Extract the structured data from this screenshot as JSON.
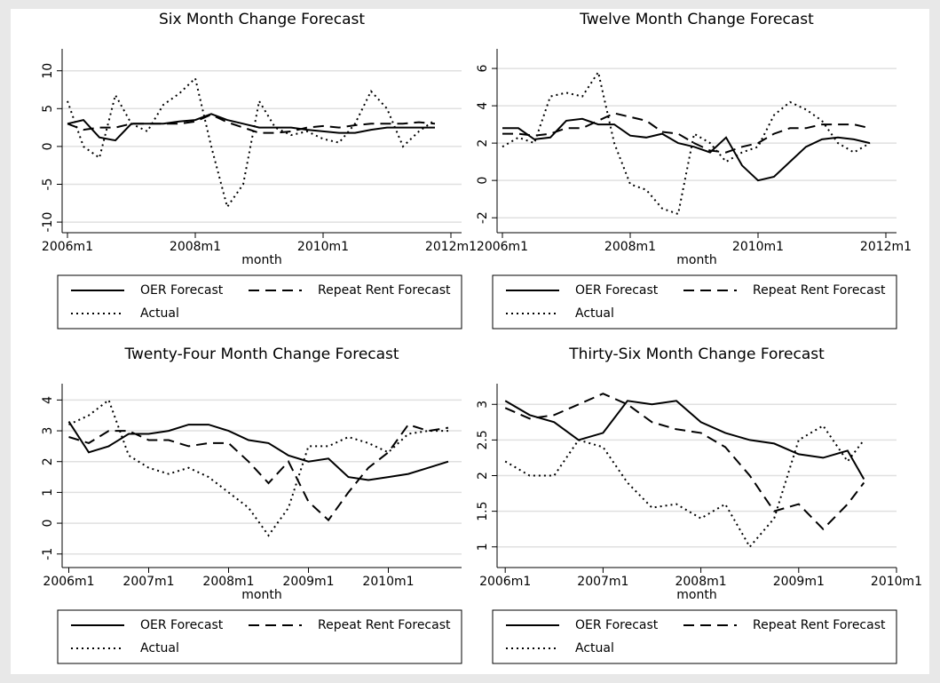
{
  "chart_data": [
    {
      "type": "line",
      "title": "Six Month Change Forecast",
      "x_label": "month",
      "x": [
        "2006m1",
        "2006m4",
        "2006m7",
        "2006m10",
        "2007m1",
        "2007m4",
        "2007m7",
        "2007m10",
        "2008m1",
        "2008m4",
        "2008m7",
        "2008m10",
        "2009m1",
        "2009m4",
        "2009m7",
        "2009m10",
        "2010m1",
        "2010m4",
        "2010m7",
        "2010m10",
        "2011m1",
        "2011m4",
        "2011m7",
        "2011m10"
      ],
      "xlim": [
        "2005m12",
        "2012m3"
      ],
      "xticks": [
        "2006m1",
        "2008m1",
        "2010m1",
        "2012m1"
      ],
      "ylim": [
        -11.4,
        12.9
      ],
      "yticks": [
        -10,
        -5,
        0,
        5,
        10
      ],
      "grid": true,
      "legend": "bottom",
      "series": [
        {
          "name": "OER Forecast",
          "color": "#000000",
          "dash": "solid",
          "values": [
            3,
            3.5,
            1.2,
            0.8,
            3,
            3,
            3,
            3.3,
            3.5,
            4.3,
            3.5,
            3,
            2.5,
            2.5,
            2.5,
            2.2,
            2,
            1.8,
            1.8,
            2.2,
            2.5,
            2.5,
            2.5,
            2.5
          ]
        },
        {
          "name": "Repeat Rent Forecast",
          "color": "#000000",
          "dash": "dashed",
          "values": [
            3,
            2.2,
            2.5,
            2.5,
            3,
            3,
            3,
            3,
            3.3,
            4.2,
            3.2,
            2.5,
            1.8,
            1.8,
            2,
            2.5,
            2.7,
            2.5,
            2.8,
            3,
            3,
            3,
            3.2,
            3
          ]
        },
        {
          "name": "Actual",
          "color": "#000000",
          "dash": "dotted",
          "values": [
            6,
            0,
            -1.5,
            6.8,
            3,
            2,
            5.5,
            7,
            9,
            0,
            -8,
            -5,
            6,
            2.5,
            1.5,
            2,
            1,
            0.5,
            3,
            7.3,
            5,
            0,
            2,
            3.5
          ]
        }
      ]
    },
    {
      "type": "line",
      "title": "Twelve Month Change Forecast",
      "x_label": "month",
      "x": [
        "2006m1",
        "2006m4",
        "2006m7",
        "2006m10",
        "2007m1",
        "2007m4",
        "2007m7",
        "2007m10",
        "2008m1",
        "2008m4",
        "2008m7",
        "2008m10",
        "2009m1",
        "2009m4",
        "2009m7",
        "2009m10",
        "2010m1",
        "2010m4",
        "2010m7",
        "2010m10",
        "2011m1",
        "2011m4",
        "2011m7",
        "2011m10"
      ],
      "xlim": [
        "2005m12",
        "2012m3"
      ],
      "xticks": [
        "2006m1",
        "2008m1",
        "2010m1",
        "2012m1"
      ],
      "ylim": [
        -2.8,
        7.05
      ],
      "yticks": [
        -2,
        0,
        2,
        4,
        6
      ],
      "grid": true,
      "legend": "bottom",
      "series": [
        {
          "name": "OER Forecast",
          "color": "#000000",
          "dash": "solid",
          "values": [
            2.8,
            2.8,
            2.2,
            2.3,
            3.2,
            3.3,
            3,
            3,
            2.4,
            2.3,
            2.5,
            2,
            1.8,
            1.5,
            2.3,
            0.8,
            0,
            0.2,
            1,
            1.8,
            2.2,
            2.3,
            2.2,
            2
          ]
        },
        {
          "name": "Repeat Rent Forecast",
          "color": "#000000",
          "dash": "dashed",
          "values": [
            2.5,
            2.5,
            2.4,
            2.5,
            2.8,
            2.8,
            3.2,
            3.6,
            3.4,
            3.2,
            2.6,
            2.5,
            2,
            1.6,
            1.5,
            1.8,
            2,
            2.5,
            2.8,
            2.8,
            3,
            3,
            3,
            2.8
          ]
        },
        {
          "name": "Actual",
          "color": "#000000",
          "dash": "dotted",
          "values": [
            1.8,
            2.3,
            2,
            4.5,
            4.7,
            4.5,
            5.8,
            2,
            -0.2,
            -0.5,
            -1.5,
            -1.8,
            2.5,
            2,
            1,
            1.5,
            1.8,
            3.5,
            4.2,
            3.8,
            3.2,
            2,
            1.5,
            2
          ]
        }
      ]
    },
    {
      "type": "line",
      "title": "Twenty-Four Month Change Forecast",
      "x_label": "month",
      "x": [
        "2006m1",
        "2006m4",
        "2006m7",
        "2006m10",
        "2007m1",
        "2007m4",
        "2007m7",
        "2007m10",
        "2008m1",
        "2008m4",
        "2008m7",
        "2008m10",
        "2009m1",
        "2009m4",
        "2009m7",
        "2009m10",
        "2010m1",
        "2010m4",
        "2010m7",
        "2010m10"
      ],
      "xlim": [
        "2005m12",
        "2010m12"
      ],
      "xticks": [
        "2006m1",
        "2007m1",
        "2008m1",
        "2009m1",
        "2010m1"
      ],
      "ylim": [
        -1.44,
        4.53
      ],
      "yticks": [
        -1,
        0,
        1,
        2,
        3,
        4
      ],
      "grid": true,
      "legend": "bottom",
      "series": [
        {
          "name": "OER Forecast",
          "color": "#000000",
          "dash": "solid",
          "values": [
            3.3,
            2.3,
            2.5,
            2.9,
            2.9,
            3,
            3.2,
            3.2,
            3,
            2.7,
            2.6,
            2.2,
            2,
            2.1,
            1.5,
            1.4,
            1.5,
            1.6,
            1.8,
            2
          ]
        },
        {
          "name": "Repeat Rent Forecast",
          "color": "#000000",
          "dash": "dashed",
          "values": [
            2.8,
            2.6,
            3,
            3,
            2.7,
            2.7,
            2.5,
            2.6,
            2.6,
            2,
            1.3,
            2,
            0.7,
            0.1,
            1,
            1.8,
            2.3,
            3.2,
            3,
            3.1
          ]
        },
        {
          "name": "Actual",
          "color": "#000000",
          "dash": "dotted",
          "values": [
            3.2,
            3.5,
            4,
            2.2,
            1.8,
            1.6,
            1.8,
            1.5,
            1,
            0.5,
            -0.4,
            0.5,
            2.5,
            2.5,
            2.8,
            2.6,
            2.3,
            2.9,
            3,
            3
          ]
        }
      ]
    },
    {
      "type": "line",
      "title": "Thirty-Six Month Change Forecast",
      "x_label": "month",
      "x": [
        "2006m1",
        "2006m4",
        "2006m7",
        "2006m10",
        "2007m1",
        "2007m4",
        "2007m7",
        "2007m10",
        "2008m1",
        "2008m4",
        "2008m7",
        "2008m10",
        "2009m1",
        "2009m4",
        "2009m7",
        "2009m9"
      ],
      "xlim": [
        "2005m12",
        "2010m1"
      ],
      "xticks": [
        "2006m1",
        "2007m1",
        "2008m1",
        "2009m1",
        "2010m1"
      ],
      "ylim": [
        0.71,
        3.29
      ],
      "yticks": [
        1,
        1.5,
        2,
        2.5,
        3
      ],
      "grid": true,
      "legend": "bottom",
      "series": [
        {
          "name": "OER Forecast",
          "color": "#000000",
          "dash": "solid",
          "values": [
            3.05,
            2.85,
            2.75,
            2.5,
            2.6,
            3.05,
            3,
            3.05,
            2.75,
            2.6,
            2.5,
            2.45,
            2.3,
            2.25,
            2.35,
            1.95
          ]
        },
        {
          "name": "Repeat Rent Forecast",
          "color": "#000000",
          "dash": "dashed",
          "values": [
            2.95,
            2.8,
            2.85,
            3,
            3.15,
            3,
            2.75,
            2.65,
            2.6,
            2.4,
            2,
            1.5,
            1.6,
            1.25,
            1.6,
            1.9
          ]
        },
        {
          "name": "Actual",
          "color": "#000000",
          "dash": "dotted",
          "values": [
            2.2,
            2,
            2,
            2.5,
            2.4,
            1.9,
            1.55,
            1.6,
            1.4,
            1.6,
            1,
            1.4,
            2.5,
            2.7,
            2.2,
            2.5
          ]
        }
      ]
    }
  ]
}
